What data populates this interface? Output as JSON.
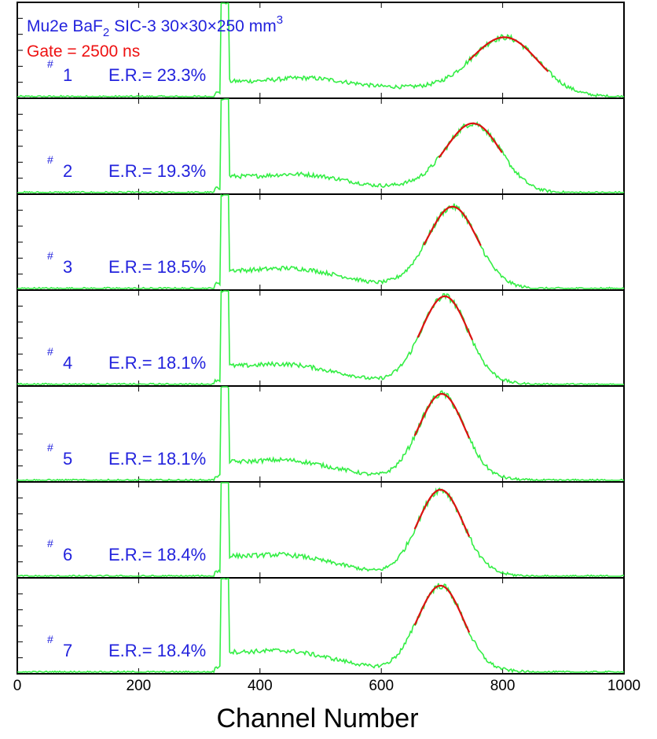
{
  "chart_data": {
    "type": "line",
    "title_line1": "Mu2e BaF",
    "title_sub": "2",
    "title_line2": " SIC-3  30×30×250 mm",
    "title_sup": "3",
    "gate_label": "Gate = 2500 ns",
    "xlabel": "Channel Number",
    "xlim": [
      0,
      1000
    ],
    "x_ticks": [
      0,
      200,
      400,
      600,
      800,
      1000
    ],
    "x_tick_labels": [
      "0",
      "200",
      "400",
      "600",
      "800",
      "1000"
    ],
    "grid": false,
    "colors": {
      "spectrum": "#33ee44",
      "fit": "#dd1111",
      "annotation": "#2222dd",
      "gate": "#ee1111"
    },
    "panels": [
      {
        "id": "#",
        "num": "1",
        "er": "E.R.= 23.3%",
        "peak_x": 805,
        "peak_sigma": 55,
        "peak_height": 0.62,
        "fit_range": [
          745,
          875
        ],
        "spike_x": 342,
        "baseline_start": 0.17,
        "baseline_end": 0.12,
        "hump_x": 480,
        "hump_height": 0.06,
        "valley_x": 620,
        "valley_level": 0.1
      },
      {
        "id": "#",
        "num": "2",
        "er": "E.R.= 19.3%",
        "peak_x": 752,
        "peak_sigma": 45,
        "peak_height": 0.72,
        "fit_range": [
          695,
          800
        ],
        "spike_x": 342,
        "baseline_start": 0.18,
        "baseline_end": 0.1,
        "hump_x": 470,
        "hump_height": 0.06,
        "valley_x": 600,
        "valley_level": 0.06
      },
      {
        "id": "#",
        "num": "3",
        "er": "E.R.= 18.5%",
        "peak_x": 718,
        "peak_sigma": 40,
        "peak_height": 0.85,
        "fit_range": [
          670,
          765
        ],
        "spike_x": 342,
        "baseline_start": 0.2,
        "baseline_end": 0.09,
        "hump_x": 460,
        "hump_height": 0.07,
        "valley_x": 600,
        "valley_level": 0.04
      },
      {
        "id": "#",
        "num": "4",
        "er": "E.R.= 18.1%",
        "peak_x": 705,
        "peak_sigma": 38,
        "peak_height": 0.92,
        "fit_range": [
          660,
          750
        ],
        "spike_x": 342,
        "baseline_start": 0.2,
        "baseline_end": 0.08,
        "hump_x": 450,
        "hump_height": 0.07,
        "valley_x": 600,
        "valley_level": 0.03
      },
      {
        "id": "#",
        "num": "5",
        "er": "E.R.= 18.1%",
        "peak_x": 700,
        "peak_sigma": 37,
        "peak_height": 0.9,
        "fit_range": [
          655,
          745
        ],
        "spike_x": 342,
        "baseline_start": 0.2,
        "baseline_end": 0.08,
        "hump_x": 450,
        "hump_height": 0.07,
        "valley_x": 600,
        "valley_level": 0.03
      },
      {
        "id": "#",
        "num": "6",
        "er": "E.R.= 18.4%",
        "peak_x": 698,
        "peak_sigma": 37,
        "peak_height": 0.9,
        "fit_range": [
          655,
          745
        ],
        "spike_x": 342,
        "baseline_start": 0.22,
        "baseline_end": 0.08,
        "hump_x": 450,
        "hump_height": 0.07,
        "valley_x": 600,
        "valley_level": 0.03
      },
      {
        "id": "#",
        "num": "7",
        "er": "E.R.= 18.4%",
        "peak_x": 698,
        "peak_sigma": 37,
        "peak_height": 0.9,
        "fit_range": [
          655,
          745
        ],
        "spike_x": 342,
        "baseline_start": 0.22,
        "baseline_end": 0.08,
        "hump_x": 450,
        "hump_height": 0.07,
        "valley_x": 600,
        "valley_level": 0.03
      }
    ]
  }
}
